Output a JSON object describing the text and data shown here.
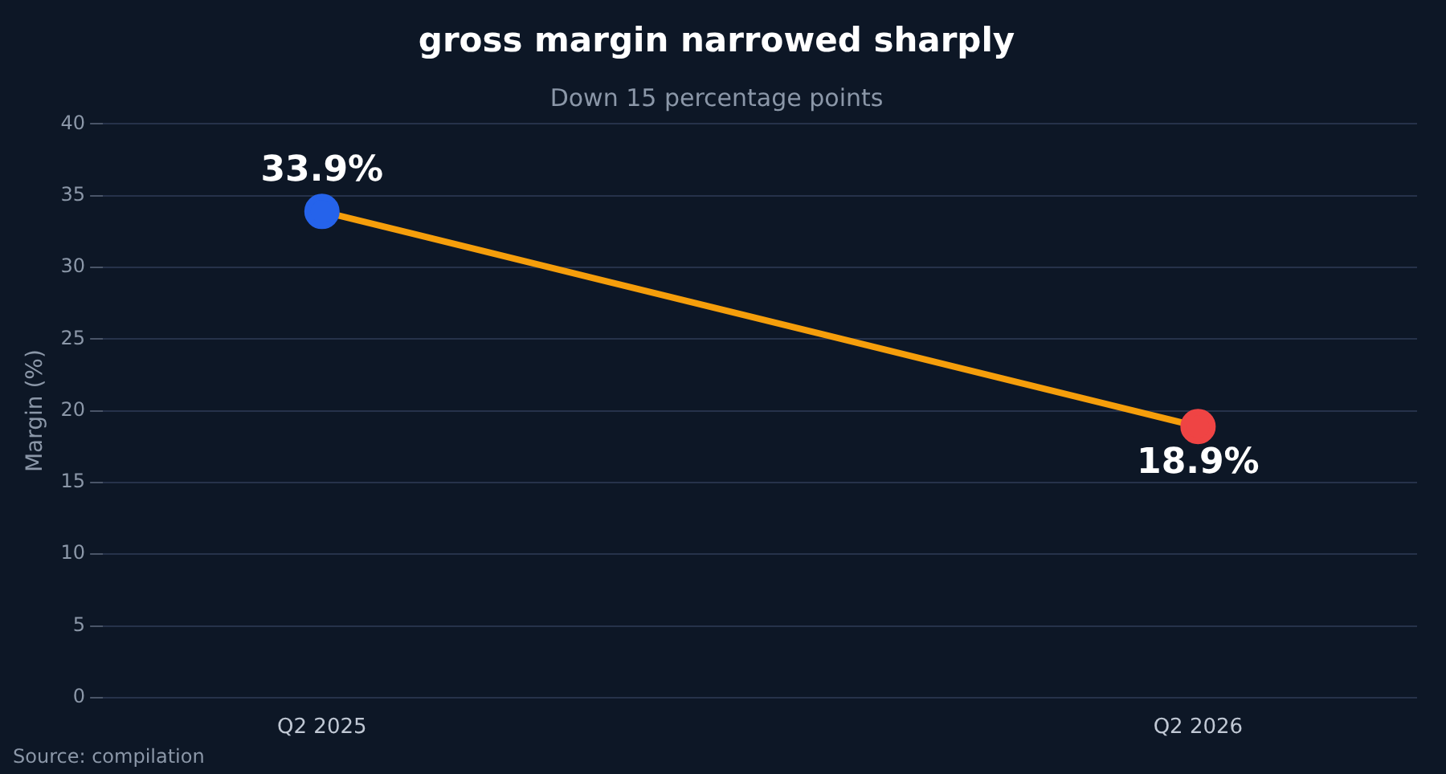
{
  "chart_data": {
    "type": "line",
    "title": "gross margin narrowed sharply",
    "subtitle": "Down 15 percentage points",
    "ylabel": "Margin (%)",
    "categories": [
      "Q2 2025",
      "Q2 2026"
    ],
    "series": [
      {
        "color": "#f59e0b",
        "colors": [
          "#2563eb",
          "#ef4444"
        ],
        "values": [
          33.9,
          18.9
        ],
        "value_labels": [
          "33.9%",
          "18.9%"
        ]
      }
    ],
    "ylim": [
      0,
      40
    ],
    "yticks": [
      0,
      5,
      10,
      15,
      20,
      25,
      30,
      35,
      40
    ],
    "grid": "y",
    "legend": false,
    "marker": "circle",
    "line_style": "solid",
    "annotations": [
      "Source: compilation"
    ]
  }
}
